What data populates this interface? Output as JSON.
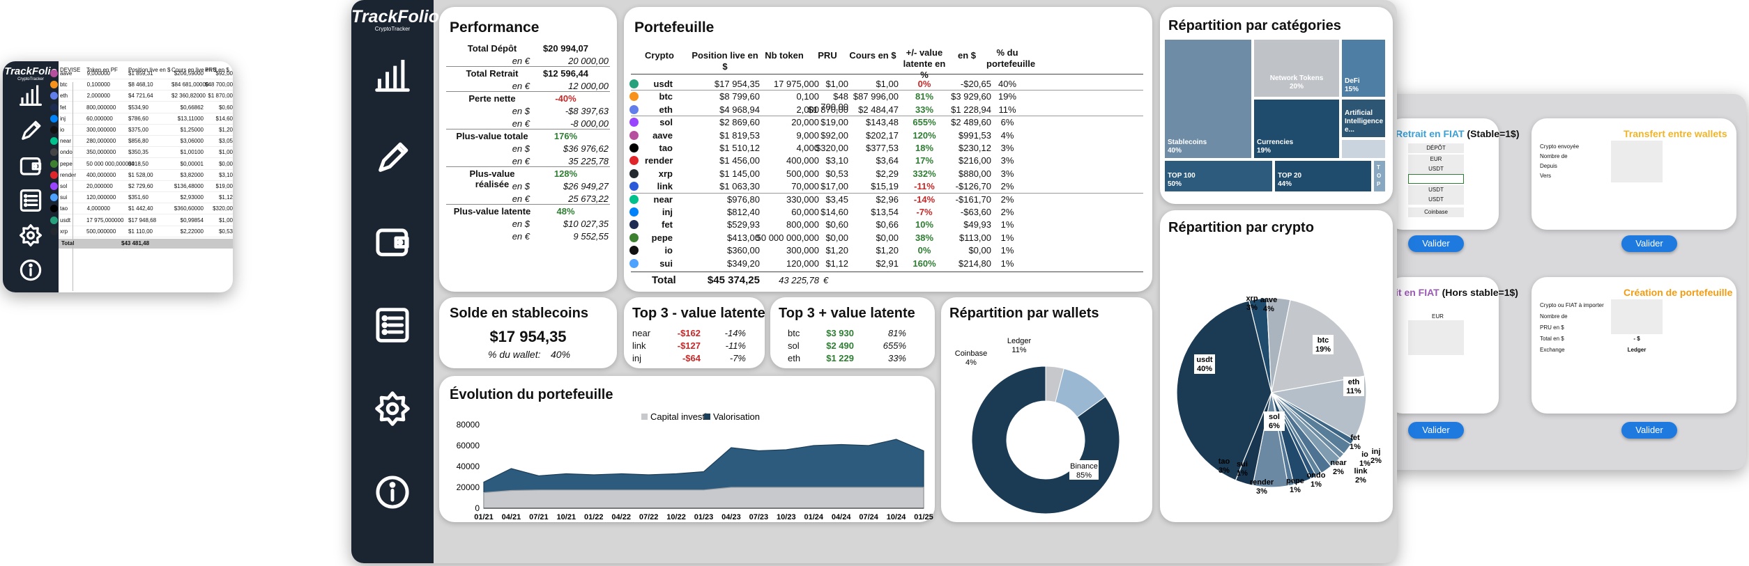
{
  "brand": {
    "name": "TrackFolio",
    "sub": "CryptoTracker"
  },
  "colors": {
    "navy": "#1b3a54",
    "mid": "#2d5675",
    "sidebar": "#1b2431",
    "gain": "#2e7d32",
    "loss": "#c62828",
    "accent": "#1f7ae0"
  },
  "sidebar_icons": [
    "chart-icon",
    "pencil-icon",
    "wallet-icon",
    "list-icon",
    "gear-icon",
    "info-icon"
  ],
  "left_sheet": {
    "headers": [
      "DEVISE",
      "Token en PF",
      "Position live en $",
      "Cours en live en $",
      "PRU en $"
    ],
    "rows": [
      {
        "ticker": "aave",
        "tokens": "9,000000",
        "pos": "$1 859,31",
        "live": "$206,59000",
        "pru": "$92,00"
      },
      {
        "ticker": "btc",
        "tokens": "0,100000",
        "pos": "$8 468,10",
        "live": "$84 681,00000",
        "pru": "$48 700,00"
      },
      {
        "ticker": "eth",
        "tokens": "2,000000",
        "pos": "$4 721,64",
        "live": "$2 360,82000",
        "pru": "$1 870,00"
      },
      {
        "ticker": "fet",
        "tokens": "800,000000",
        "pos": "$534,90",
        "live": "$0,66862",
        "pru": "$0,60"
      },
      {
        "ticker": "inj",
        "tokens": "60,000000",
        "pos": "$786,60",
        "live": "$13,11000",
        "pru": "$14,60"
      },
      {
        "ticker": "io",
        "tokens": "300,000000",
        "pos": "$375,00",
        "live": "$1,25000",
        "pru": "$1,20"
      },
      {
        "ticker": "near",
        "tokens": "280,000000",
        "pos": "$856,80",
        "live": "$3,06000",
        "pru": "$3,05"
      },
      {
        "ticker": "ondo",
        "tokens": "350,000000",
        "pos": "$350,35",
        "live": "$1,00100",
        "pru": "$1,00"
      },
      {
        "ticker": "pepe",
        "tokens": "50 000 000,000000",
        "pos": "$418,50",
        "live": "$0,00001",
        "pru": "$0,00"
      },
      {
        "ticker": "render",
        "tokens": "400,000000",
        "pos": "$1 528,00",
        "live": "$3,82000",
        "pru": "$3,10"
      },
      {
        "ticker": "sol",
        "tokens": "20,000000",
        "pos": "$2 729,60",
        "live": "$136,48000",
        "pru": "$19,00"
      },
      {
        "ticker": "sui",
        "tokens": "120,000000",
        "pos": "$351,60",
        "live": "$2,93000",
        "pru": "$1,12"
      },
      {
        "ticker": "tao",
        "tokens": "4,000000",
        "pos": "$1 442,40",
        "live": "$360,60000",
        "pru": "$320,00"
      },
      {
        "ticker": "usdt",
        "tokens": "17 975,000000",
        "pos": "$17 948,68",
        "live": "$0,99854",
        "pru": "$1,00"
      },
      {
        "ticker": "xrp",
        "tokens": "500,000000",
        "pos": "$1 110,00",
        "live": "$2,22000",
        "pru": "$0,53"
      }
    ],
    "total_label": "Total",
    "total_value": "$43 481,48"
  },
  "performance": {
    "title": "Performance",
    "rows": [
      {
        "label": "Total Dépôt",
        "value": "$20 994,07",
        "kind": "main"
      },
      {
        "label": "en €",
        "value": "20 000,00",
        "kind": "sub"
      },
      {
        "label": "Total Retrait",
        "value": "$12 596,44",
        "kind": "main"
      },
      {
        "label": "en €",
        "value": "12 000,00",
        "kind": "sub"
      },
      {
        "label": "Perte nette",
        "value": "-40%",
        "kind": "neg"
      },
      {
        "label": "en $",
        "value": "-$8 397,63",
        "kind": "sub"
      },
      {
        "label": "en €",
        "value": "-8 000,00",
        "kind": "sub"
      },
      {
        "label": "Plus-value totale",
        "value": "176%",
        "kind": "pos"
      },
      {
        "label": "en $",
        "value": "$36 976,62",
        "kind": "sub"
      },
      {
        "label": "en €",
        "value": "35 225,78",
        "kind": "sub"
      },
      {
        "label": "Plus-value réalisée",
        "value": "128%",
        "kind": "pos"
      },
      {
        "label": "en $",
        "value": "$26 949,27",
        "kind": "sub"
      },
      {
        "label": "en €",
        "value": "25 673,22",
        "kind": "sub"
      },
      {
        "label": "Plus-value latente",
        "value": "48%",
        "kind": "pos"
      },
      {
        "label": "en $",
        "value": "$10 027,35",
        "kind": "sub"
      },
      {
        "label": "en €",
        "value": "9 552,55",
        "kind": "sub"
      }
    ]
  },
  "portfolio": {
    "title": "Portefeuille",
    "headers": [
      "Crypto",
      "Position live en $",
      "Nb token",
      "PRU",
      "Cours en $",
      "+/- value latente en %",
      "en $",
      "% du portefeuille"
    ],
    "rows": [
      {
        "c": "usdt",
        "pos": "$17 954,35",
        "nb": "17 975,000",
        "pru": "$1,00",
        "cours": "$1,00",
        "pct": "0%",
        "usd": "-$20,65",
        "share": "40%",
        "col": "#26a17b",
        "t": "neg"
      },
      {
        "c": "btc",
        "pos": "$8 799,60",
        "nb": "0,100",
        "pru": "$48 700,00",
        "cours": "$87 996,00",
        "pct": "81%",
        "usd": "$3 929,60",
        "share": "19%",
        "col": "#f7931a",
        "t": "pos"
      },
      {
        "c": "eth",
        "pos": "$4 968,94",
        "nb": "2,000",
        "pru": "$1 870,00",
        "cours": "$2 484,47",
        "pct": "33%",
        "usd": "$1 228,94",
        "share": "11%",
        "col": "#627eea",
        "t": "pos"
      },
      {
        "c": "sol",
        "pos": "$2 869,60",
        "nb": "20,000",
        "pru": "$19,00",
        "cours": "$143,48",
        "pct": "655%",
        "usd": "$2 489,60",
        "share": "6%",
        "col": "#9945ff",
        "t": "pos"
      },
      {
        "c": "aave",
        "pos": "$1 819,53",
        "nb": "9,000",
        "pru": "$92,00",
        "cours": "$202,17",
        "pct": "120%",
        "usd": "$991,53",
        "share": "4%",
        "col": "#b6509e",
        "t": "pos"
      },
      {
        "c": "tao",
        "pos": "$1 510,12",
        "nb": "4,000",
        "pru": "$320,00",
        "cours": "$377,53",
        "pct": "18%",
        "usd": "$230,12",
        "share": "3%",
        "col": "#000000",
        "t": "pos"
      },
      {
        "c": "render",
        "pos": "$1 456,00",
        "nb": "400,000",
        "pru": "$3,10",
        "cours": "$3,64",
        "pct": "17%",
        "usd": "$216,00",
        "share": "3%",
        "col": "#e0262b",
        "t": "pos"
      },
      {
        "c": "xrp",
        "pos": "$1 145,00",
        "nb": "500,000",
        "pru": "$0,53",
        "cours": "$2,29",
        "pct": "332%",
        "usd": "$880,00",
        "share": "3%",
        "col": "#23292f",
        "t": "pos"
      },
      {
        "c": "link",
        "pos": "$1 063,30",
        "nb": "70,000",
        "pru": "$17,00",
        "cours": "$15,19",
        "pct": "-11%",
        "usd": "-$126,70",
        "share": "2%",
        "col": "#2a5ada",
        "t": "neg"
      },
      {
        "c": "near",
        "pos": "$976,80",
        "nb": "330,000",
        "pru": "$3,45",
        "cours": "$2,96",
        "pct": "-14%",
        "usd": "-$161,70",
        "share": "2%",
        "col": "#00c08b",
        "t": "neg"
      },
      {
        "c": "inj",
        "pos": "$812,40",
        "nb": "60,000",
        "pru": "$14,60",
        "cours": "$13,54",
        "pct": "-7%",
        "usd": "-$63,60",
        "share": "2%",
        "col": "#0082fa",
        "t": "neg"
      },
      {
        "c": "fet",
        "pos": "$529,93",
        "nb": "800,000",
        "pru": "$0,60",
        "cours": "$0,66",
        "pct": "10%",
        "usd": "$49,93",
        "share": "1%",
        "col": "#1d2b53",
        "t": "pos"
      },
      {
        "c": "pepe",
        "pos": "$413,00",
        "nb": "50 000 000,000",
        "pru": "$0,00",
        "cours": "$0,00",
        "pct": "38%",
        "usd": "$113,00",
        "share": "1%",
        "col": "#3d8130",
        "t": "pos"
      },
      {
        "c": "io",
        "pos": "$360,00",
        "nb": "300,000",
        "pru": "$1,20",
        "cours": "$1,20",
        "pct": "0%",
        "usd": "$0,00",
        "share": "1%",
        "col": "#111111",
        "t": "pos"
      },
      {
        "c": "sui",
        "pos": "$349,20",
        "nb": "120,000",
        "pru": "$1,12",
        "cours": "$2,91",
        "pct": "160%",
        "usd": "$214,80",
        "share": "1%",
        "col": "#4da2ff",
        "t": "pos"
      }
    ],
    "total_label": "Total",
    "total_usd": "$45 374,25",
    "total_eur": "43 225,78",
    "eur_sign": "€"
  },
  "stable": {
    "title": "Solde en stablecoins",
    "amount": "$17 954,35",
    "sub_label": "% du wallet:",
    "sub_value": "40%"
  },
  "top_minus": {
    "title": "Top 3 - value latente",
    "rows": [
      {
        "c": "near",
        "usd": "-$162",
        "pct": "-14%"
      },
      {
        "c": "link",
        "usd": "-$127",
        "pct": "-11%"
      },
      {
        "c": "inj",
        "usd": "-$64",
        "pct": "-7%"
      }
    ]
  },
  "top_plus": {
    "title": "Top 3 + value latente",
    "rows": [
      {
        "c": "btc",
        "usd": "$3 930",
        "pct": "81%"
      },
      {
        "c": "sol",
        "usd": "$2 490",
        "pct": "655%"
      },
      {
        "c": "eth",
        "usd": "$1 229",
        "pct": "33%"
      }
    ]
  },
  "wallets": {
    "title": "Répartition par wallets",
    "slices": [
      {
        "name": "Binance",
        "value": 85
      },
      {
        "name": "Coinbase",
        "value": 4
      },
      {
        "name": "Ledger",
        "value": 11
      }
    ],
    "labels": [
      "Binance",
      "85%",
      "Coinbase",
      "4%",
      "Ledger",
      "11%"
    ]
  },
  "categories": {
    "title": "Répartition par catégories",
    "items": [
      {
        "name": "Stablecoins",
        "pct": "40%"
      },
      {
        "name": "Network Tokens",
        "pct": "20%"
      },
      {
        "name": "DeFi",
        "pct": "15%"
      },
      {
        "name": "Currencies",
        "pct": "19%"
      },
      {
        "name": "Artificial Intelligence",
        "pct": "e..."
      },
      {
        "name": "TOP 100",
        "pct": "50%"
      },
      {
        "name": "TOP 20",
        "pct": "44%"
      },
      {
        "name": "T",
        "pct": "O P"
      }
    ]
  },
  "crypto_split": {
    "title": "Répartition par crypto"
  },
  "evolution": {
    "title": "Évolution du portefeuille",
    "legend": [
      "Capital investi",
      "Valorisation"
    ]
  },
  "forms": {
    "retrait_title": "Retrait en FIAT",
    "retrait_suffix": "(Stable=1$)",
    "retrait_fields": [
      "DÉPÔT",
      "EUR",
      "USDT",
      "",
      "USDT",
      "USDT",
      "Coinbase"
    ],
    "transfert_title": "Transfert entre wallets",
    "transfert_fields": [
      "Crypto envoyée",
      "Nombre de",
      "Depuis",
      "Vers"
    ],
    "depot_title": "it en FIAT",
    "depot_suffix": "(Hors stable=1$)",
    "depot_fields": [
      "EUR"
    ],
    "creation_title": "Création de portefeuille",
    "creation_fields": [
      "Crypto ou FIAT à importer",
      "Nombre de",
      "PRU en $",
      "Total en $",
      "Exchange"
    ],
    "creation_values": [
      "",
      "",
      "",
      "-     $",
      "Ledger"
    ],
    "button": "Valider"
  },
  "chart_data": [
    {
      "type": "area",
      "title": "Évolution du portefeuille",
      "x": [
        "01/21",
        "04/21",
        "07/21",
        "10/21",
        "01/22",
        "04/22",
        "07/22",
        "10/22",
        "01/23",
        "04/23",
        "07/23",
        "10/23",
        "01/24",
        "04/24",
        "07/24",
        "10/24",
        "01/25"
      ],
      "series": [
        {
          "name": "Capital investi",
          "values": [
            15000,
            17000,
            17500,
            17500,
            17500,
            17500,
            17500,
            17500,
            17500,
            20000,
            20000,
            20000,
            20000,
            20000,
            20000,
            20000,
            20000
          ]
        },
        {
          "name": "Valorisation",
          "values": [
            25000,
            38000,
            31000,
            33000,
            32000,
            33000,
            32000,
            33000,
            35000,
            58000,
            55000,
            56000,
            60000,
            61000,
            60000,
            66000,
            55000
          ]
        }
      ],
      "ylim": [
        0,
        80000
      ],
      "yticks": [
        0,
        20000,
        40000,
        60000,
        80000
      ]
    },
    {
      "type": "pie",
      "title": "Répartition par crypto",
      "slices": [
        {
          "name": "usdt",
          "value": 40
        },
        {
          "name": "xrp",
          "value": 3
        },
        {
          "name": "aave",
          "value": 4
        },
        {
          "name": "btc",
          "value": 19
        },
        {
          "name": "eth",
          "value": 11
        },
        {
          "name": "fet",
          "value": 1
        },
        {
          "name": "inj",
          "value": 2
        },
        {
          "name": "io",
          "value": 1
        },
        {
          "name": "link",
          "value": 2
        },
        {
          "name": "near",
          "value": 2
        },
        {
          "name": "ondo",
          "value": 1
        },
        {
          "name": "pepe",
          "value": 1
        },
        {
          "name": "render",
          "value": 3
        },
        {
          "name": "sui",
          "value": 1
        },
        {
          "name": "sol",
          "value": 6
        },
        {
          "name": "tao",
          "value": 3
        }
      ]
    },
    {
      "type": "pie",
      "title": "Répartition par wallets",
      "slices": [
        {
          "name": "Binance",
          "value": 85
        },
        {
          "name": "Coinbase",
          "value": 4
        },
        {
          "name": "Ledger",
          "value": 11
        }
      ]
    }
  ]
}
